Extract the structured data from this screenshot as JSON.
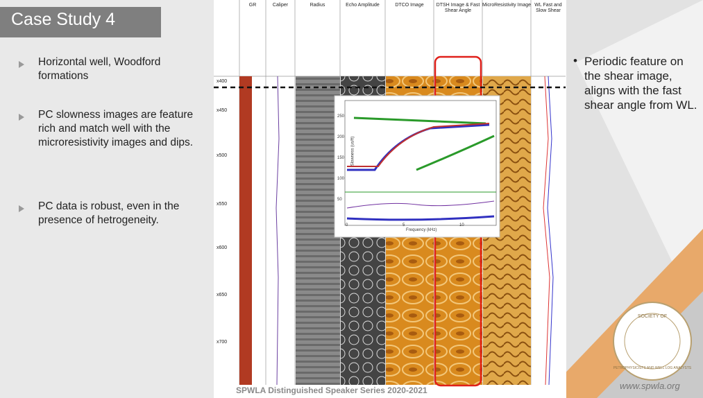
{
  "title": "Case Study 4",
  "bullets": [
    "Horizontal well, Woodford formations",
    "PC slowness images are feature rich and match well with the microresistivity images and dips.",
    "PC data is robust, even in the presence of hetrogeneity."
  ],
  "right_bullet": "Periodic feature on the shear image, aligns with the fast shear angle from WL.",
  "log": {
    "tracks": [
      "GR",
      "Caliper",
      "Radius",
      "Echo Amplitude",
      "DTCO Image",
      "DTSH Image & Fast Shear Angle",
      "MicroResistivity Image",
      "WL Fast and Slow Shear"
    ],
    "depths": [
      "x400",
      "x450",
      "x500",
      "x550",
      "x600",
      "x650",
      "x700"
    ]
  },
  "inset": {
    "y_label": "Slowness (us/ft)",
    "x_label": "Frequency (kHz)",
    "yticks": [
      250,
      200,
      150,
      100,
      50
    ],
    "xticks": [
      0,
      5,
      10
    ]
  },
  "footer": "SPWLA Distinguished Speaker Series 2020-2021",
  "url": "www.spwla.org",
  "logo": {
    "top": "SOCIETY OF",
    "ring": "PETROPHYSICISTS AND WELL LOG ANALYSTS"
  }
}
